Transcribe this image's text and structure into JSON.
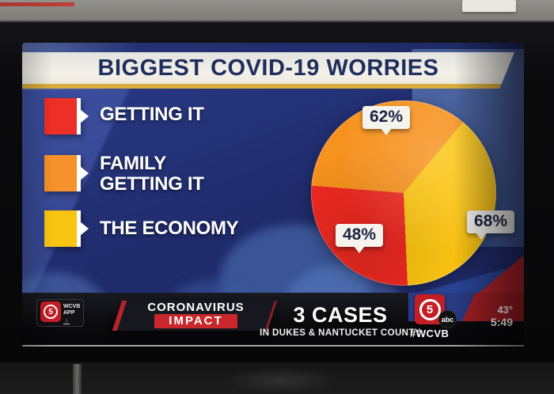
{
  "screen": {
    "title": "BIGGEST COVID-19 WORRIES",
    "legend": [
      {
        "label": "GETTING IT",
        "color": "#ee2f27"
      },
      {
        "label": "FAMILY\nGETTING IT",
        "color": "#f5922a"
      },
      {
        "label": "THE ECONOMY",
        "color": "#f9c513"
      }
    ]
  },
  "chart_data": {
    "type": "pie",
    "title": "BIGGEST COVID-19 WORRIES",
    "start_angle_deg": 40,
    "legend_position": "left",
    "slices": [
      {
        "label": "THE ECONOMY",
        "value": 68,
        "display": "68%",
        "color": "#fbc413"
      },
      {
        "label": "GETTING IT",
        "value": 48,
        "display": "48%",
        "color": "#ee2a22"
      },
      {
        "label": "FAMILY GETTING IT",
        "value": 62,
        "display": "62%",
        "color": "#f6921e"
      }
    ]
  },
  "lower_third": {
    "app_badge": {
      "channel": "5",
      "label": "WCVB\nAPP"
    },
    "franchise": {
      "line1": "CORONAVIRUS",
      "line2": "IMPACT"
    },
    "headline": "3 CASES",
    "subheadline": "IN DUKES & NANTUCKET COUNTY",
    "station": {
      "channel": "5",
      "network": "abc",
      "hashtag": "#WCVB"
    },
    "temperature": "43°",
    "clock": "5:49"
  }
}
